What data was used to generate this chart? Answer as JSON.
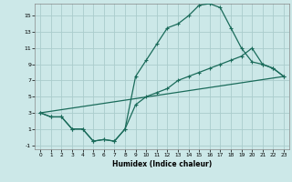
{
  "xlabel": "Humidex (Indice chaleur)",
  "bg_color": "#cce8e8",
  "grid_color": "#aacccc",
  "line_color": "#1a6b5a",
  "xlim": [
    -0.5,
    23.5
  ],
  "ylim": [
    -1.5,
    16.5
  ],
  "xticks": [
    0,
    1,
    2,
    3,
    4,
    5,
    6,
    7,
    8,
    9,
    10,
    11,
    12,
    13,
    14,
    15,
    16,
    17,
    18,
    19,
    20,
    21,
    22,
    23
  ],
  "yticks": [
    -1,
    1,
    3,
    5,
    7,
    9,
    11,
    13,
    15
  ],
  "line1_x": [
    0,
    1,
    2,
    3,
    4,
    5,
    6,
    7,
    8,
    9,
    10,
    11,
    12,
    13,
    14,
    15,
    16,
    17,
    18,
    19,
    20,
    21,
    22,
    23
  ],
  "line1_y": [
    3,
    2.5,
    2.5,
    1,
    1,
    -0.5,
    -0.3,
    -0.5,
    1,
    7.5,
    9.5,
    11.5,
    13.5,
    14,
    15,
    16.3,
    16.5,
    16,
    13.5,
    11,
    9.3,
    9,
    8.5,
    7.5
  ],
  "line2_x": [
    0,
    1,
    2,
    3,
    4,
    5,
    6,
    7,
    8,
    9,
    10,
    11,
    12,
    13,
    14,
    15,
    16,
    17,
    18,
    19,
    20,
    21,
    22,
    23
  ],
  "line2_y": [
    3,
    2.5,
    2.5,
    1,
    1,
    -0.5,
    -0.3,
    -0.5,
    1,
    4,
    5,
    5.5,
    6,
    7,
    7.5,
    8,
    8.5,
    9,
    9.5,
    10,
    11,
    9,
    8.5,
    7.5
  ],
  "line3_x": [
    0,
    23
  ],
  "line3_y": [
    3,
    7.5
  ]
}
